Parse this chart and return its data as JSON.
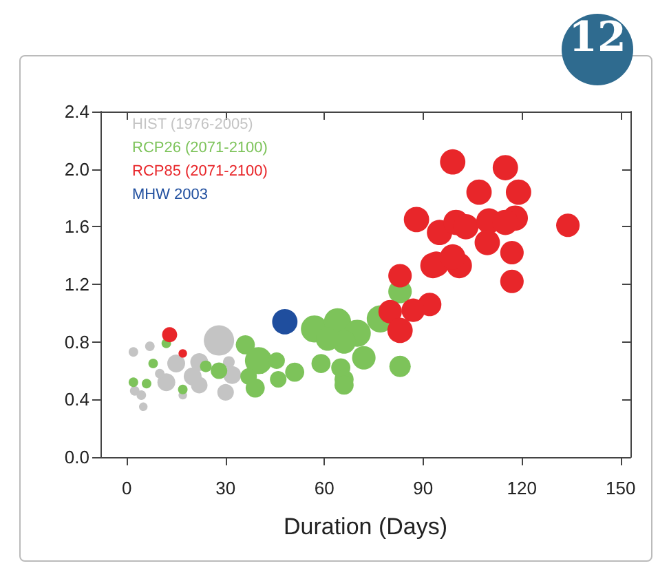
{
  "chart_data": {
    "type": "bubble",
    "xlabel": "Duration (Days)",
    "annotations": [
      "12"
    ],
    "xlim": [
      -8,
      153
    ],
    "xticks": [
      0,
      30,
      60,
      90,
      120,
      150
    ],
    "ylim": [
      0,
      2.4
    ],
    "yticks": [
      {
        "value": 0,
        "label": "0.0"
      },
      {
        "value": 0.4,
        "label": "0.4"
      },
      {
        "value": 0.8,
        "label": "0.8"
      },
      {
        "value": 1.2,
        "label": "1.2"
      },
      {
        "value": 1.6,
        "label": "1.6"
      },
      {
        "value": 2.0,
        "label": "2.0"
      },
      {
        "value": 2.4,
        "label": "2.4"
      }
    ],
    "grid": false,
    "legend": "top left",
    "marker": "circle",
    "series": [
      {
        "name": "HIST (1976-2005)",
        "color": "#c4c4c4",
        "x": [
          2,
          7,
          28,
          15,
          22,
          31,
          32,
          20,
          12,
          10,
          22,
          30,
          2.4,
          4.4,
          5,
          17
        ],
        "values": [
          0.73,
          0.77,
          0.81,
          0.65,
          0.66,
          0.66,
          0.57,
          0.56,
          0.52,
          0.58,
          0.5,
          0.45,
          0.46,
          0.43,
          0.35,
          0.43
        ],
        "sizes": [
          0.1,
          0.1,
          1,
          0.35,
          0.35,
          0.15,
          0.35,
          0.35,
          0.35,
          0.1,
          0.3,
          0.3,
          0.1,
          0.1,
          0.08,
          0.08
        ]
      },
      {
        "name": "RCP26 (2071-2100)",
        "color": "#7dc35a",
        "x": [
          12,
          8,
          2,
          6,
          17,
          24,
          28,
          36,
          40,
          45.5,
          37,
          39,
          46,
          51,
          57,
          64,
          70,
          77,
          66,
          61,
          72,
          59,
          65,
          66,
          66,
          83,
          83
        ],
        "values": [
          0.79,
          0.65,
          0.52,
          0.51,
          0.47,
          0.63,
          0.6,
          0.78,
          0.67,
          0.67,
          0.56,
          0.48,
          0.54,
          0.59,
          0.89,
          0.94,
          0.86,
          0.96,
          0.8,
          0.82,
          0.69,
          0.65,
          0.62,
          0.54,
          0.5,
          0.63,
          1.15
        ],
        "sizes": [
          0.1,
          0.1,
          0.1,
          0.1,
          0.1,
          0.15,
          0.3,
          0.4,
          0.8,
          0.3,
          0.3,
          0.4,
          0.3,
          0.4,
          0.8,
          0.8,
          0.8,
          0.8,
          0.6,
          0.6,
          0.6,
          0.4,
          0.4,
          0.4,
          0.4,
          0.5,
          0.6
        ]
      },
      {
        "name": "RCP85 (2071-2100)",
        "color": "#e8262a",
        "x": [
          13,
          17,
          83,
          80,
          83,
          92,
          87,
          93,
          99,
          115,
          107,
          119,
          88,
          95,
          100,
          103,
          110,
          118,
          115,
          134,
          109.5,
          117,
          94,
          101,
          99,
          117
        ],
        "values": [
          0.85,
          0.72,
          1.26,
          1.01,
          0.88,
          1.06,
          1.02,
          1.33,
          2.05,
          2.01,
          1.84,
          1.84,
          1.65,
          1.56,
          1.63,
          1.6,
          1.64,
          1.66,
          1.63,
          1.61,
          1.49,
          1.42,
          1.34,
          1.33,
          1.39,
          1.22
        ],
        "sizes": [
          0.25,
          0.08,
          0.6,
          0.6,
          0.7,
          0.6,
          0.6,
          0.7,
          0.7,
          0.7,
          0.7,
          0.7,
          0.7,
          0.7,
          0.7,
          0.7,
          0.7,
          0.7,
          0.7,
          0.6,
          0.7,
          0.6,
          0.7,
          0.7,
          0.7,
          0.6
        ]
      },
      {
        "name": "MHW 2003",
        "color": "#1f4e9e",
        "x": [
          48
        ],
        "values": [
          0.94
        ],
        "sizes": [
          0.7
        ]
      }
    ]
  }
}
